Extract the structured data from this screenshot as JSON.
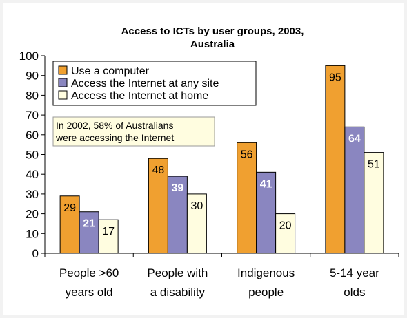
{
  "chart_data": {
    "type": "bar",
    "title_lines": [
      "Access to ICTs by user groups, 2003,",
      "Australia"
    ],
    "categories": [
      [
        "People >60",
        "years old"
      ],
      [
        "People with",
        "a disability"
      ],
      [
        "Indigenous",
        "people"
      ],
      [
        "5-14 year",
        "olds"
      ]
    ],
    "series": [
      {
        "name": "Use a computer",
        "values": [
          29,
          48,
          56,
          95
        ],
        "color": "#f0a030",
        "label_color": "#000000",
        "label_bold": false
      },
      {
        "name": "Access the Internet at any site",
        "values": [
          21,
          39,
          41,
          64
        ],
        "color": "#8a86c0",
        "label_color": "#ffffff",
        "label_bold": true
      },
      {
        "name": "Access the Internet at home",
        "values": [
          17,
          30,
          20,
          51
        ],
        "color": "#fffde0",
        "label_color": "#000000",
        "label_bold": false
      }
    ],
    "ylim": [
      0,
      100
    ],
    "yticks": [
      0,
      10,
      20,
      30,
      40,
      50,
      60,
      70,
      80,
      90,
      100
    ],
    "grid": false,
    "legend_position": "top-left",
    "annotation_lines": [
      "In 2002, 58% of Australians",
      "were accessing the Internet"
    ],
    "annotation_bg": "#fffde0"
  }
}
